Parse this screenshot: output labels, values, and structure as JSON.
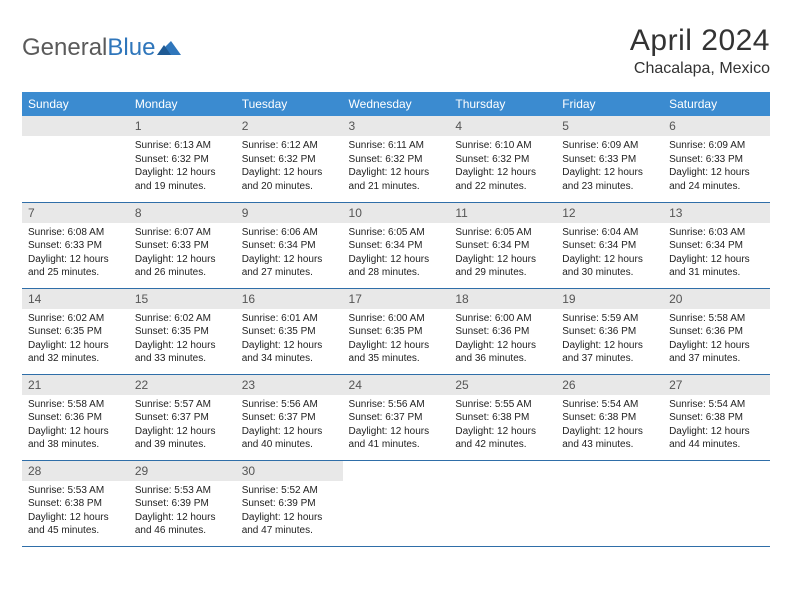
{
  "brand": {
    "part1": "General",
    "part2": "Blue"
  },
  "title": "April 2024",
  "location": "Chacalapa, Mexico",
  "colors": {
    "header_bg": "#3b8bd0",
    "header_text": "#ffffff",
    "daynum_bg": "#e8e8e8",
    "rule": "#2f6ea8",
    "logo_accent": "#2f76bb"
  },
  "weekdays": [
    "Sunday",
    "Monday",
    "Tuesday",
    "Wednesday",
    "Thursday",
    "Friday",
    "Saturday"
  ],
  "weeks": [
    [
      {
        "n": "",
        "sr": "",
        "ss": "",
        "dl": ""
      },
      {
        "n": "1",
        "sr": "Sunrise: 6:13 AM",
        "ss": "Sunset: 6:32 PM",
        "dl": "Daylight: 12 hours and 19 minutes."
      },
      {
        "n": "2",
        "sr": "Sunrise: 6:12 AM",
        "ss": "Sunset: 6:32 PM",
        "dl": "Daylight: 12 hours and 20 minutes."
      },
      {
        "n": "3",
        "sr": "Sunrise: 6:11 AM",
        "ss": "Sunset: 6:32 PM",
        "dl": "Daylight: 12 hours and 21 minutes."
      },
      {
        "n": "4",
        "sr": "Sunrise: 6:10 AM",
        "ss": "Sunset: 6:32 PM",
        "dl": "Daylight: 12 hours and 22 minutes."
      },
      {
        "n": "5",
        "sr": "Sunrise: 6:09 AM",
        "ss": "Sunset: 6:33 PM",
        "dl": "Daylight: 12 hours and 23 minutes."
      },
      {
        "n": "6",
        "sr": "Sunrise: 6:09 AM",
        "ss": "Sunset: 6:33 PM",
        "dl": "Daylight: 12 hours and 24 minutes."
      }
    ],
    [
      {
        "n": "7",
        "sr": "Sunrise: 6:08 AM",
        "ss": "Sunset: 6:33 PM",
        "dl": "Daylight: 12 hours and 25 minutes."
      },
      {
        "n": "8",
        "sr": "Sunrise: 6:07 AM",
        "ss": "Sunset: 6:33 PM",
        "dl": "Daylight: 12 hours and 26 minutes."
      },
      {
        "n": "9",
        "sr": "Sunrise: 6:06 AM",
        "ss": "Sunset: 6:34 PM",
        "dl": "Daylight: 12 hours and 27 minutes."
      },
      {
        "n": "10",
        "sr": "Sunrise: 6:05 AM",
        "ss": "Sunset: 6:34 PM",
        "dl": "Daylight: 12 hours and 28 minutes."
      },
      {
        "n": "11",
        "sr": "Sunrise: 6:05 AM",
        "ss": "Sunset: 6:34 PM",
        "dl": "Daylight: 12 hours and 29 minutes."
      },
      {
        "n": "12",
        "sr": "Sunrise: 6:04 AM",
        "ss": "Sunset: 6:34 PM",
        "dl": "Daylight: 12 hours and 30 minutes."
      },
      {
        "n": "13",
        "sr": "Sunrise: 6:03 AM",
        "ss": "Sunset: 6:34 PM",
        "dl": "Daylight: 12 hours and 31 minutes."
      }
    ],
    [
      {
        "n": "14",
        "sr": "Sunrise: 6:02 AM",
        "ss": "Sunset: 6:35 PM",
        "dl": "Daylight: 12 hours and 32 minutes."
      },
      {
        "n": "15",
        "sr": "Sunrise: 6:02 AM",
        "ss": "Sunset: 6:35 PM",
        "dl": "Daylight: 12 hours and 33 minutes."
      },
      {
        "n": "16",
        "sr": "Sunrise: 6:01 AM",
        "ss": "Sunset: 6:35 PM",
        "dl": "Daylight: 12 hours and 34 minutes."
      },
      {
        "n": "17",
        "sr": "Sunrise: 6:00 AM",
        "ss": "Sunset: 6:35 PM",
        "dl": "Daylight: 12 hours and 35 minutes."
      },
      {
        "n": "18",
        "sr": "Sunrise: 6:00 AM",
        "ss": "Sunset: 6:36 PM",
        "dl": "Daylight: 12 hours and 36 minutes."
      },
      {
        "n": "19",
        "sr": "Sunrise: 5:59 AM",
        "ss": "Sunset: 6:36 PM",
        "dl": "Daylight: 12 hours and 37 minutes."
      },
      {
        "n": "20",
        "sr": "Sunrise: 5:58 AM",
        "ss": "Sunset: 6:36 PM",
        "dl": "Daylight: 12 hours and 37 minutes."
      }
    ],
    [
      {
        "n": "21",
        "sr": "Sunrise: 5:58 AM",
        "ss": "Sunset: 6:36 PM",
        "dl": "Daylight: 12 hours and 38 minutes."
      },
      {
        "n": "22",
        "sr": "Sunrise: 5:57 AM",
        "ss": "Sunset: 6:37 PM",
        "dl": "Daylight: 12 hours and 39 minutes."
      },
      {
        "n": "23",
        "sr": "Sunrise: 5:56 AM",
        "ss": "Sunset: 6:37 PM",
        "dl": "Daylight: 12 hours and 40 minutes."
      },
      {
        "n": "24",
        "sr": "Sunrise: 5:56 AM",
        "ss": "Sunset: 6:37 PM",
        "dl": "Daylight: 12 hours and 41 minutes."
      },
      {
        "n": "25",
        "sr": "Sunrise: 5:55 AM",
        "ss": "Sunset: 6:38 PM",
        "dl": "Daylight: 12 hours and 42 minutes."
      },
      {
        "n": "26",
        "sr": "Sunrise: 5:54 AM",
        "ss": "Sunset: 6:38 PM",
        "dl": "Daylight: 12 hours and 43 minutes."
      },
      {
        "n": "27",
        "sr": "Sunrise: 5:54 AM",
        "ss": "Sunset: 6:38 PM",
        "dl": "Daylight: 12 hours and 44 minutes."
      }
    ],
    [
      {
        "n": "28",
        "sr": "Sunrise: 5:53 AM",
        "ss": "Sunset: 6:38 PM",
        "dl": "Daylight: 12 hours and 45 minutes."
      },
      {
        "n": "29",
        "sr": "Sunrise: 5:53 AM",
        "ss": "Sunset: 6:39 PM",
        "dl": "Daylight: 12 hours and 46 minutes."
      },
      {
        "n": "30",
        "sr": "Sunrise: 5:52 AM",
        "ss": "Sunset: 6:39 PM",
        "dl": "Daylight: 12 hours and 47 minutes."
      },
      {
        "n": "",
        "sr": "",
        "ss": "",
        "dl": ""
      },
      {
        "n": "",
        "sr": "",
        "ss": "",
        "dl": ""
      },
      {
        "n": "",
        "sr": "",
        "ss": "",
        "dl": ""
      },
      {
        "n": "",
        "sr": "",
        "ss": "",
        "dl": ""
      }
    ]
  ]
}
